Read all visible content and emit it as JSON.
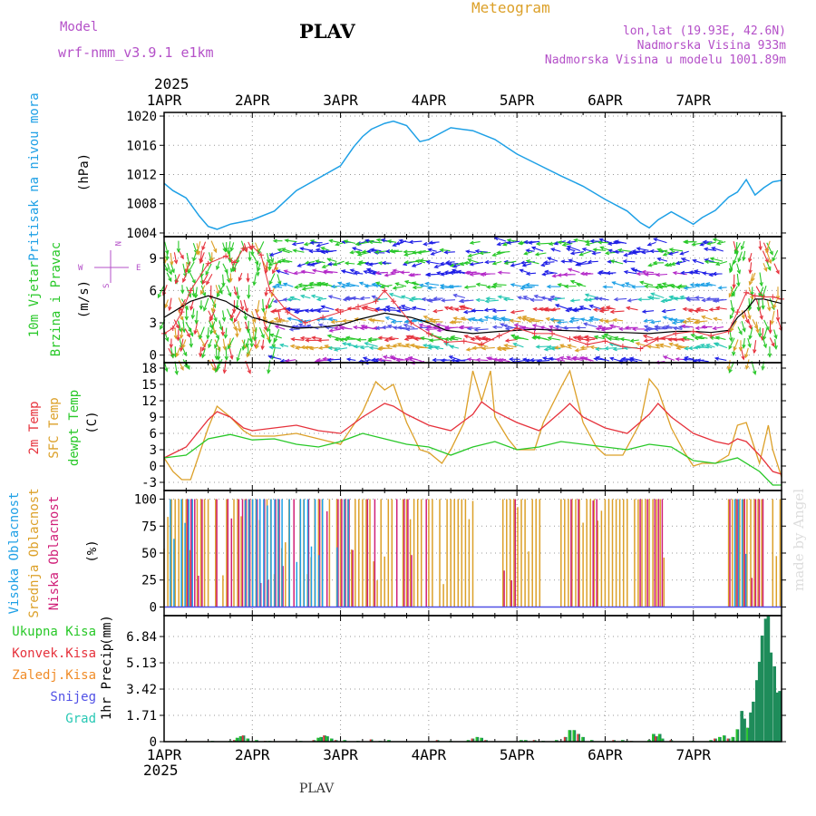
{
  "header": {
    "model_label": "Model",
    "model_name": "wrf-nmm_v3.9.1 e1km",
    "station": "PLAV",
    "product": "Meteogram",
    "coords": "lon,lat (19.93E, 42.6N)",
    "elevation": "Nadmorska Visina 933m",
    "model_elevation": "Nadmorska Visina u modelu 1001.89m",
    "watermark": "made by Angel",
    "footer_station": "PLAV"
  },
  "colors": {
    "pressure": "#1ea0e6",
    "temp2m": "#e6323c",
    "sfc_temp": "#dca028",
    "dewpt": "#28c828",
    "cloud_high": "#1ea0e6",
    "cloud_mid": "#dca028",
    "cloud_low": "#d01e78",
    "precip_total": "#28c828",
    "precip_conv": "#e6323c",
    "precip_frozen": "#f08c28",
    "snow": "#5050e6",
    "graupel": "#28c8b4",
    "magenta_text": "#b450c8",
    "wind_speed": "#000000",
    "gust": "#e6323c"
  },
  "chart_data": [
    {
      "type": "line",
      "name": "pressure",
      "ylabel_main": "Pritisak na nivou mora",
      "ylabel_unit": "(hPa)",
      "ylim": [
        1003.5,
        1020.5
      ],
      "yticks": [
        1004,
        1008,
        1012,
        1016,
        1020
      ],
      "series": [
        {
          "name": "",
          "x": [
            0,
            0.1,
            0.25,
            0.4,
            0.5,
            0.6,
            0.75,
            1.0,
            1.25,
            1.5,
            1.75,
            2.0,
            2.15,
            2.25,
            2.35,
            2.5,
            2.6,
            2.75,
            2.9,
            3.0,
            3.25,
            3.5,
            3.75,
            4.0,
            4.25,
            4.5,
            4.75,
            5.0,
            5.25,
            5.4,
            5.5,
            5.6,
            5.75,
            5.9,
            6.0,
            6.1,
            6.25,
            6.4,
            6.5,
            6.6,
            6.7,
            6.8,
            6.9,
            6.95,
            7.0
          ],
          "values": [
            1010.8,
            1009.8,
            1008.8,
            1006.3,
            1004.9,
            1004.5,
            1005.2,
            1005.8,
            1007.0,
            1009.8,
            1011.5,
            1013.2,
            1015.8,
            1017.2,
            1018.2,
            1019.0,
            1019.3,
            1018.7,
            1016.5,
            1016.8,
            1018.4,
            1018.0,
            1016.8,
            1014.8,
            1013.3,
            1011.8,
            1010.4,
            1008.6,
            1007.0,
            1005.4,
            1004.7,
            1005.8,
            1006.9,
            1005.9,
            1005.2,
            1006.1,
            1007.1,
            1008.9,
            1009.6,
            1011.3,
            1009.2,
            1010.2,
            1011.0,
            1011.1,
            1011.2
          ]
        }
      ]
    },
    {
      "type": "scatter",
      "name": "wind",
      "ylabel_main": "10m Vjetar",
      "ylabel_sub": "Brzina i Pravac",
      "ylabel_unit": "(m/s)",
      "compass": {
        "n": "N",
        "w": "W",
        "e": "E",
        "s": "S"
      },
      "ylim": [
        -0.7,
        11.0
      ],
      "yticks": [
        0,
        3,
        6,
        9
      ],
      "series": [
        {
          "name": "speed",
          "x": [
            0,
            0.1,
            0.2,
            0.3,
            0.5,
            0.7,
            0.9,
            1.0,
            1.1,
            1.2,
            1.5,
            1.8,
            2.0,
            2.2,
            2.5,
            2.8,
            3.0,
            3.2,
            3.5,
            3.8,
            4.0,
            4.2,
            4.5,
            4.8,
            5.0,
            5.2,
            5.5,
            5.8,
            6.0,
            6.2,
            6.4,
            6.5,
            6.6,
            6.7,
            6.8,
            6.9,
            7.0
          ],
          "values": [
            3.5,
            4.0,
            4.5,
            5.0,
            5.5,
            5.0,
            4.0,
            3.5,
            3.3,
            3.0,
            2.5,
            2.6,
            2.8,
            3.3,
            3.9,
            3.5,
            3.0,
            2.3,
            2.0,
            2.2,
            2.3,
            2.4,
            2.3,
            2.2,
            2.1,
            2.1,
            2.0,
            2.2,
            2.2,
            2.1,
            2.3,
            3.5,
            4.2,
            5.2,
            5.2,
            5.0,
            4.8
          ]
        },
        {
          "name": "gust",
          "x": [
            0,
            0.1,
            0.2,
            0.3,
            0.5,
            0.7,
            0.8,
            0.9,
            1.0,
            1.1,
            1.2,
            1.4,
            1.6,
            1.8,
            2.0,
            2.2,
            2.4,
            2.5,
            2.6,
            2.8,
            3.0,
            3.2,
            3.4,
            3.6,
            3.8,
            4.0,
            4.2,
            4.4,
            4.6,
            4.8,
            5.0,
            5.2,
            5.4,
            5.6,
            5.8,
            6.0,
            6.2,
            6.4,
            6.5,
            6.6,
            6.7,
            6.8,
            6.9,
            7.0
          ],
          "values": [
            2.0,
            2.5,
            4.0,
            6.0,
            8.5,
            9.2,
            8.6,
            9.9,
            10.1,
            9.3,
            6.0,
            4.0,
            3.0,
            3.5,
            4.0,
            4.5,
            5.0,
            6.0,
            5.0,
            3.0,
            2.0,
            1.2,
            1.3,
            1.0,
            1.8,
            2.5,
            2.0,
            2.0,
            1.5,
            1.0,
            1.3,
            0.8,
            0.6,
            1.5,
            2.0,
            2.2,
            1.8,
            2.2,
            4.0,
            5.8,
            5.5,
            5.4,
            5.4,
            5.2
          ]
        },
        {
          "name": "arrow_rows",
          "values": [
            -0.5,
            0.7,
            1.5,
            2.5,
            3.2,
            4.2,
            5.2,
            6.4,
            7.6,
            8.6,
            9.6,
            10.5
          ]
        }
      ]
    },
    {
      "type": "line",
      "name": "temperature",
      "ylabel_main": "2m Temp",
      "ylabel_sub": "SFC Temp",
      "ylabel_sub2": "dewpt Temp",
      "ylabel_unit": "(C)",
      "ylim": [
        -4.5,
        19
      ],
      "yticks": [
        -3,
        0,
        3,
        6,
        9,
        12,
        15,
        18
      ],
      "series": [
        {
          "name": "2m",
          "x": [
            0,
            0.25,
            0.5,
            0.6,
            0.75,
            0.9,
            1.0,
            1.25,
            1.5,
            1.75,
            2.0,
            2.25,
            2.5,
            2.6,
            2.75,
            3.0,
            3.25,
            3.5,
            3.6,
            3.75,
            4.0,
            4.25,
            4.5,
            4.6,
            4.75,
            5.0,
            5.25,
            5.5,
            5.6,
            5.75,
            6.0,
            6.25,
            6.4,
            6.5,
            6.6,
            6.75,
            6.9,
            7.0
          ],
          "values": [
            1.5,
            3.5,
            8.5,
            10.0,
            9.0,
            7.0,
            6.5,
            7.0,
            7.5,
            6.5,
            6.0,
            9.0,
            11.5,
            11.0,
            9.5,
            7.5,
            6.5,
            9.5,
            11.8,
            10.0,
            8.0,
            6.5,
            10.0,
            11.5,
            9.0,
            7.0,
            6.0,
            9.5,
            11.5,
            9.0,
            6.0,
            4.5,
            4.0,
            5.0,
            4.5,
            2.0,
            -1.0,
            -1.5
          ]
        },
        {
          "name": "sfc",
          "x": [
            0,
            0.1,
            0.2,
            0.3,
            0.5,
            0.6,
            0.75,
            0.9,
            1.0,
            1.25,
            1.5,
            1.75,
            2.0,
            2.25,
            2.4,
            2.5,
            2.6,
            2.75,
            2.9,
            3.0,
            3.15,
            3.25,
            3.4,
            3.5,
            3.6,
            3.7,
            3.75,
            3.9,
            4.0,
            4.2,
            4.3,
            4.5,
            4.6,
            4.75,
            4.9,
            5.0,
            5.2,
            5.4,
            5.5,
            5.6,
            5.75,
            5.9,
            6.0,
            6.1,
            6.25,
            6.4,
            6.5,
            6.6,
            6.7,
            6.75,
            6.85,
            6.9,
            7.0
          ],
          "values": [
            1.5,
            -1.0,
            -2.5,
            -2.5,
            7.0,
            11.0,
            9.0,
            6.5,
            5.5,
            5.5,
            6.0,
            5.0,
            4.0,
            10.0,
            15.5,
            14.0,
            15.0,
            8.0,
            3.0,
            2.5,
            0.5,
            3.0,
            8.0,
            17.5,
            12.0,
            17.5,
            9.0,
            5.0,
            3.0,
            3.0,
            8.0,
            14.5,
            17.5,
            8.0,
            3.5,
            2.0,
            2.0,
            8.0,
            16.0,
            14.0,
            7.0,
            2.5,
            0.0,
            0.5,
            0.5,
            2.0,
            7.5,
            8.0,
            3.0,
            0.5,
            7.5,
            3.0,
            -2.0
          ]
        },
        {
          "name": "dewpt",
          "x": [
            0,
            0.25,
            0.5,
            0.75,
            1.0,
            1.25,
            1.5,
            1.75,
            2.0,
            2.25,
            2.5,
            2.75,
            3.0,
            3.25,
            3.5,
            3.75,
            4.0,
            4.25,
            4.5,
            4.75,
            5.0,
            5.25,
            5.5,
            5.75,
            6.0,
            6.25,
            6.5,
            6.75,
            6.9,
            7.0
          ],
          "values": [
            1.5,
            2.0,
            5.0,
            5.8,
            4.8,
            5.0,
            4.0,
            3.5,
            4.5,
            6.0,
            5.0,
            4.0,
            3.5,
            2.0,
            3.5,
            4.5,
            3.0,
            3.5,
            4.5,
            4.0,
            3.5,
            3.0,
            4.0,
            3.5,
            1.0,
            0.5,
            1.5,
            -1.0,
            -3.5,
            -3.5
          ]
        }
      ]
    },
    {
      "type": "bar",
      "name": "clouds",
      "ylabel_main": "Visoka Oblacnost",
      "ylabel_sub": "Srednja Oblacnost",
      "ylabel_sub2": "Niska Oblacnost",
      "ylabel_unit": "(%)",
      "ylim": [
        -8,
        108
      ],
      "yticks": [
        0,
        25,
        50,
        75,
        100
      ],
      "high_ranges": [
        [
          0.05,
          0.35
        ],
        [
          0.9,
          2.1
        ],
        [
          6.45,
          6.6
        ]
      ],
      "mid_ranges": [
        [
          0.0,
          3.5
        ],
        [
          3.8,
          4.3
        ],
        [
          4.5,
          5.7
        ],
        [
          6.4,
          6.8
        ],
        [
          6.9,
          7.0
        ]
      ],
      "low_ranges": [
        [
          0.0,
          3.0
        ],
        [
          3.8,
          4.0
        ],
        [
          4.6,
          5.0
        ],
        [
          5.3,
          5.7
        ],
        [
          6.4,
          6.8
        ]
      ]
    },
    {
      "type": "bar",
      "name": "precip",
      "ylabel_main": "1hr Precip",
      "ylabel_unit": "(mm)",
      "legend": [
        "Ukupna Kisa",
        "Konvek.Kisa",
        "Zaledj.Kisa",
        "Snijeg",
        "Grad"
      ],
      "ylim": [
        0,
        8.2
      ],
      "yticks": [
        0,
        1.71,
        3.42,
        5.13,
        6.84
      ],
      "x": [
        0.25,
        0.55,
        0.75,
        0.8,
        0.83,
        0.87,
        0.9,
        0.95,
        1.05,
        1.15,
        1.2,
        1.55,
        1.7,
        1.75,
        1.78,
        1.82,
        1.85,
        1.9,
        1.95,
        2.05,
        2.2,
        2.35,
        2.45,
        2.55,
        3.1,
        3.25,
        3.45,
        3.5,
        3.55,
        3.6,
        3.65,
        4.05,
        4.1,
        4.2,
        4.3,
        4.45,
        4.55,
        4.6,
        4.65,
        4.7,
        4.75,
        4.85,
        5.1,
        5.2,
        5.25,
        5.3,
        5.5,
        5.55,
        5.58,
        5.62,
        5.65,
        5.75,
        6.0,
        6.2,
        6.25,
        6.3,
        6.35,
        6.4,
        6.45,
        6.5,
        6.55,
        6.58,
        6.62,
        6.65,
        6.68,
        6.72,
        6.75,
        6.78,
        6.82,
        6.85,
        6.88,
        6.92,
        6.95,
        6.98
      ],
      "values": [
        0.05,
        0.05,
        0.05,
        0.1,
        0.25,
        0.35,
        0.4,
        0.2,
        0.1,
        0.05,
        0.05,
        0.05,
        0.1,
        0.25,
        0.3,
        0.4,
        0.35,
        0.2,
        0.1,
        0.1,
        0.05,
        0.15,
        0.05,
        0.1,
        0.1,
        0.05,
        0.1,
        0.2,
        0.3,
        0.25,
        0.1,
        0.1,
        0.1,
        0.1,
        0.05,
        0.1,
        0.3,
        0.75,
        0.75,
        0.5,
        0.3,
        0.1,
        0.1,
        0.1,
        0.05,
        0.05,
        0.1,
        0.5,
        0.35,
        0.5,
        0.2,
        0.1,
        0.05,
        0.1,
        0.2,
        0.3,
        0.4,
        0.2,
        0.3,
        0.8,
        2.0,
        1.5,
        0.9,
        1.9,
        2.6,
        4.0,
        5.2,
        6.9,
        8.0,
        8.2,
        5.8,
        4.9,
        3.2,
        3.3
      ]
    }
  ],
  "time_axis": {
    "year": "2025",
    "labels": [
      "1APR",
      "2APR",
      "3APR",
      "4APR",
      "5APR",
      "6APR",
      "7APR"
    ],
    "bottom_year": "2025"
  }
}
